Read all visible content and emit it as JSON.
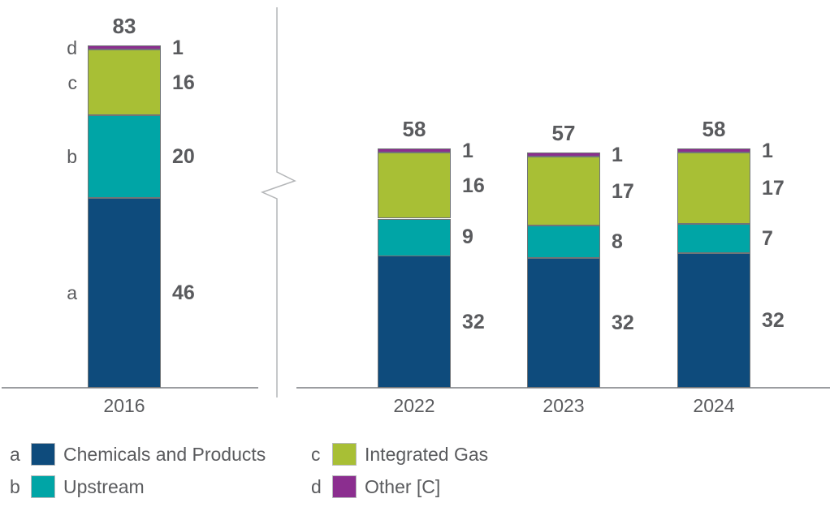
{
  "colors": {
    "chemicals_and_products": "#0e4b7c",
    "upstream": "#00a5a6",
    "integrated_gas": "#a8bf35",
    "other": "#8b2e8f",
    "text": "#5a5b5e",
    "axis": "#9b9da0",
    "segment_border": "#717477",
    "break_line": "#b4b6b8",
    "legend_swatch_border": "#b8babc",
    "background": "#ffffff"
  },
  "chart_data": {
    "type": "bar",
    "stacked": true,
    "categories": [
      "2016",
      "2022",
      "2023",
      "2024"
    ],
    "series": [
      {
        "key": "a",
        "name": "Chemicals and Products",
        "color_key": "chemicals_and_products",
        "values": [
          46,
          32,
          32,
          32
        ]
      },
      {
        "key": "b",
        "name": "Upstream",
        "color_key": "upstream",
        "values": [
          20,
          9,
          8,
          7
        ]
      },
      {
        "key": "c",
        "name": "Integrated Gas",
        "color_key": "integrated_gas",
        "values": [
          16,
          16,
          17,
          17
        ]
      },
      {
        "key": "d",
        "name": "Other [C]",
        "color_key": "other",
        "values": [
          1,
          1,
          1,
          1
        ]
      }
    ],
    "totals": [
      83,
      58,
      57,
      58
    ],
    "title": "",
    "xlabel": "",
    "ylabel": "",
    "axis_break_between": [
      "2016",
      "2022"
    ],
    "grid": false,
    "data_labels": "per-segment and total",
    "legend_position": "bottom"
  },
  "legend": {
    "items": [
      {
        "letter": "a",
        "label": "Chemicals and Products",
        "color_key": "chemicals_and_products"
      },
      {
        "letter": "b",
        "label": "Upstream",
        "color_key": "upstream"
      },
      {
        "letter": "c",
        "label": "Integrated Gas",
        "color_key": "integrated_gas"
      },
      {
        "letter": "d",
        "label": "Other [C]",
        "color_key": "other"
      }
    ]
  }
}
